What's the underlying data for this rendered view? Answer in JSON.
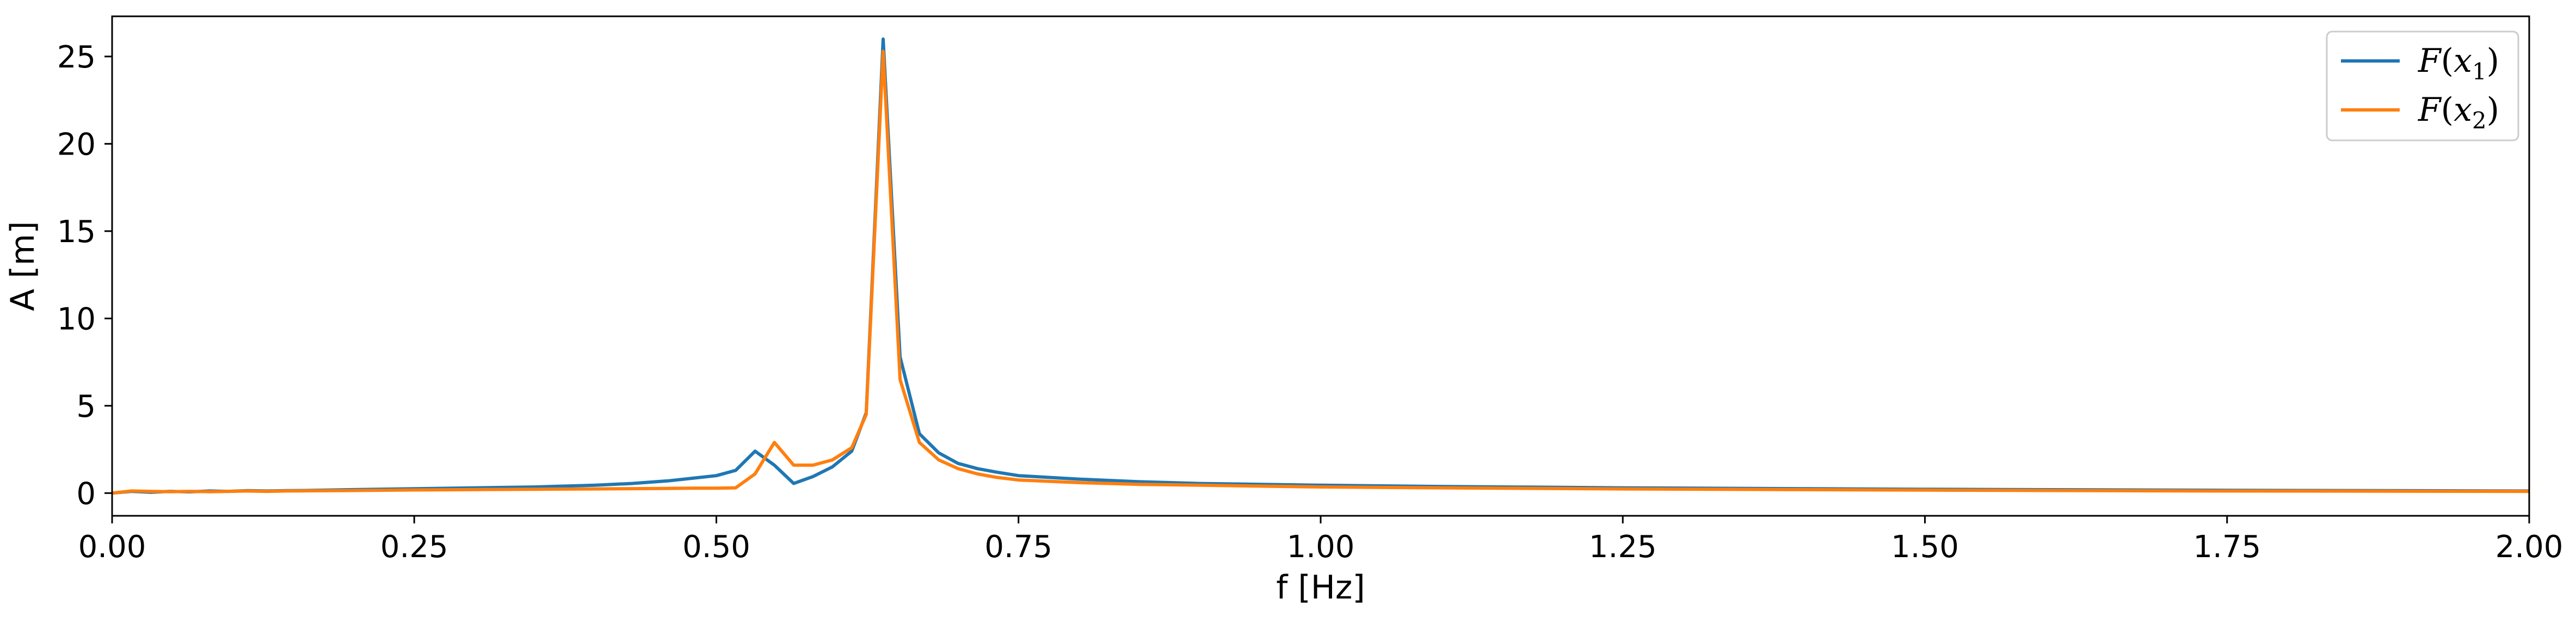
{
  "chart_data": {
    "type": "line",
    "title": "",
    "xlabel": "f [Hz]",
    "ylabel": "A [m]",
    "xlim": [
      0.0,
      2.0
    ],
    "ylim": [
      -1.3,
      27.3
    ],
    "xticks": [
      0.0,
      0.25,
      0.5,
      0.75,
      1.0,
      1.25,
      1.5,
      1.75,
      2.0
    ],
    "xtick_labels": [
      "0.00",
      "0.25",
      "0.50",
      "0.75",
      "1.00",
      "1.25",
      "1.50",
      "1.75",
      "2.00"
    ],
    "yticks": [
      0,
      5,
      10,
      15,
      20,
      25
    ],
    "ytick_labels": [
      "0",
      "5",
      "10",
      "15",
      "20",
      "25"
    ],
    "grid": false,
    "legend_position": "top-right",
    "series": [
      {
        "name": "F(x1)",
        "legend": {
          "func": "F",
          "var": "x",
          "sub": "1"
        },
        "color": "#1f77b4",
        "x": [
          0.0,
          0.016,
          0.032,
          0.048,
          0.064,
          0.08,
          0.096,
          0.112,
          0.128,
          0.144,
          0.16,
          0.2,
          0.25,
          0.3,
          0.35,
          0.4,
          0.43,
          0.46,
          0.48,
          0.5,
          0.516,
          0.532,
          0.548,
          0.564,
          0.58,
          0.596,
          0.612,
          0.624,
          0.638,
          0.652,
          0.668,
          0.684,
          0.7,
          0.716,
          0.732,
          0.75,
          0.8,
          0.85,
          0.9,
          1.0,
          1.1,
          1.25,
          1.5,
          1.75,
          2.0
        ],
        "y": [
          0.0,
          0.1,
          0.05,
          0.1,
          0.07,
          0.12,
          0.1,
          0.14,
          0.12,
          0.14,
          0.15,
          0.2,
          0.25,
          0.3,
          0.35,
          0.45,
          0.55,
          0.7,
          0.85,
          1.0,
          1.3,
          2.4,
          1.6,
          0.55,
          0.95,
          1.5,
          2.4,
          4.6,
          26.0,
          7.8,
          3.4,
          2.3,
          1.7,
          1.4,
          1.2,
          1.0,
          0.8,
          0.65,
          0.55,
          0.45,
          0.38,
          0.3,
          0.22,
          0.16,
          0.12
        ]
      },
      {
        "name": "F(x2)",
        "legend": {
          "func": "F",
          "var": "x",
          "sub": "2"
        },
        "color": "#ff7f0e",
        "x": [
          0.0,
          0.016,
          0.032,
          0.048,
          0.064,
          0.08,
          0.096,
          0.112,
          0.128,
          0.144,
          0.16,
          0.2,
          0.25,
          0.3,
          0.35,
          0.4,
          0.45,
          0.48,
          0.5,
          0.516,
          0.532,
          0.548,
          0.564,
          0.58,
          0.596,
          0.612,
          0.624,
          0.638,
          0.652,
          0.668,
          0.684,
          0.7,
          0.716,
          0.732,
          0.75,
          0.8,
          0.85,
          0.9,
          1.0,
          1.1,
          1.25,
          1.5,
          1.75,
          2.0
        ],
        "y": [
          0.0,
          0.12,
          0.1,
          0.08,
          0.1,
          0.08,
          0.1,
          0.12,
          0.1,
          0.12,
          0.13,
          0.15,
          0.18,
          0.2,
          0.22,
          0.24,
          0.26,
          0.28,
          0.28,
          0.3,
          1.1,
          2.9,
          1.6,
          1.6,
          1.9,
          2.6,
          4.5,
          25.3,
          6.5,
          2.9,
          1.9,
          1.4,
          1.1,
          0.9,
          0.75,
          0.6,
          0.5,
          0.45,
          0.35,
          0.3,
          0.24,
          0.17,
          0.12,
          0.1
        ]
      }
    ]
  }
}
